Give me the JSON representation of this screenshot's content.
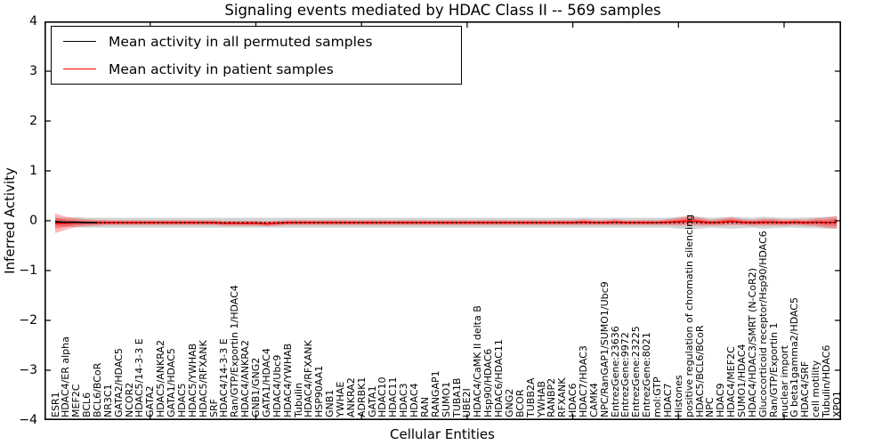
{
  "title": "Signaling events mediated by HDAC Class II -- 569 samples",
  "axes": {
    "ylabel": "Inferred Activity",
    "xlabel": "Cellular Entities",
    "yticks": [
      "4",
      "3",
      "2",
      "1",
      "0",
      "−1",
      "−2",
      "−3",
      "−4"
    ],
    "ytick_values": [
      4,
      3,
      2,
      1,
      0,
      -1,
      -2,
      -3,
      -4
    ]
  },
  "legend": {
    "items": [
      {
        "label": "Mean activity in all permuted samples",
        "color": "#000000"
      },
      {
        "label": "Mean activity in patient samples",
        "color": "#ff0000"
      }
    ]
  },
  "chart_data": {
    "type": "line",
    "title": "Signaling events mediated by HDAC Class II -- 569 samples",
    "xlabel": "Cellular Entities",
    "ylabel": "Inferred Activity",
    "ylim": [
      -4,
      4
    ],
    "grid": false,
    "legend_position": "upper left",
    "categories": [
      "ESR1",
      "HDAC4/ER alpha",
      "MEF2C",
      "BCL6",
      "BCL6/BCoR",
      "NR3C1",
      "GATA2/HDAC5",
      "NCOR2",
      "HDAC5/14-3-3 E",
      "GATA2",
      "HDAC5/ANKRA2",
      "GATA1/HDAC5",
      "HDAC5",
      "HDAC5/YWHAB",
      "HDAC5/RFXANK",
      "SRF",
      "HDAC4/14-3-3 E",
      "Ran/GTP/Exportin 1/HDAC4",
      "HDAC4/ANKRA2",
      "GNB1/GNG2",
      "GATA1/HDAC4",
      "HDAC4/Ubc9",
      "HDAC4/YWHAB",
      "Tubulin",
      "HDAC4/RFXANK",
      "HSP90AA1",
      "GNB1",
      "YWHAE",
      "ANKRA2",
      "ADRBK1",
      "GATA1",
      "HDAC10",
      "HDAC11",
      "HDAC3",
      "HDAC4",
      "RAN",
      "RANGAP1",
      "SUMO1",
      "TUBA1B",
      "UBE2I",
      "HDAC4/CaMK II delta B",
      "Hsp90/HDAC6",
      "HDAC6/HDAC11",
      "GNG2",
      "BCOR",
      "TUBB2A",
      "YWHAB",
      "RANBP2",
      "RFXANK",
      "HDAC6",
      "HDAC7/HDAC3",
      "CAMK4",
      "NPC/RanGAP1/SUMO1/Ubc9",
      "EntrezGene:23636",
      "EntrezGene:9972",
      "EntrezGene:23225",
      "EntrezGene:8021",
      "mol:GTP",
      "HDAC7",
      "Histones",
      "positive regulation of chromatin silencing",
      "HDAC5/BCL6/BCoR",
      "NPC",
      "HDAC9",
      "HDAC4/MEF2C",
      "SUMO1/HDAC4",
      "HDAC4/HDAC3/SMRT (N-CoR2)",
      "Glucocorticoid receptor/Hsp90/HDAC6",
      "Ran/GTP/Exportin 1",
      "nuclear import",
      "G beta1gamma2/HDAC5",
      "HDAC4/SRF",
      "cell motility",
      "Tubulin/HDAC6",
      "XPO1"
    ],
    "series": [
      {
        "name": "Mean activity in all permuted samples",
        "color": "#000000",
        "style": "dotted",
        "values": [
          -0.02,
          -0.03,
          -0.03,
          -0.04,
          -0.04,
          -0.04,
          -0.04,
          -0.04,
          -0.04,
          -0.04,
          -0.04,
          -0.04,
          -0.04,
          -0.04,
          -0.04,
          -0.04,
          -0.04,
          -0.04,
          -0.04,
          -0.04,
          -0.04,
          -0.04,
          -0.04,
          -0.04,
          -0.04,
          -0.04,
          -0.04,
          -0.04,
          -0.04,
          -0.04,
          -0.04,
          -0.04,
          -0.04,
          -0.04,
          -0.04,
          -0.04,
          -0.04,
          -0.04,
          -0.04,
          -0.04,
          -0.04,
          -0.04,
          -0.04,
          -0.04,
          -0.04,
          -0.04,
          -0.04,
          -0.04,
          -0.04,
          -0.04,
          -0.04,
          -0.04,
          -0.04,
          -0.04,
          -0.04,
          -0.04,
          -0.04,
          -0.04,
          -0.04,
          -0.04,
          -0.04,
          -0.04,
          -0.04,
          -0.04,
          -0.04,
          -0.04,
          -0.04,
          -0.04,
          -0.04,
          -0.04,
          -0.04,
          -0.04,
          -0.04,
          -0.04,
          -0.04
        ]
      },
      {
        "name": "Mean activity in patient samples",
        "color": "#ff0000",
        "style": "solid",
        "values": [
          -0.05,
          -0.05,
          -0.04,
          -0.04,
          -0.04,
          -0.04,
          -0.04,
          -0.04,
          -0.04,
          -0.04,
          -0.04,
          -0.04,
          -0.04,
          -0.04,
          -0.04,
          -0.04,
          -0.05,
          -0.05,
          -0.05,
          -0.05,
          -0.06,
          -0.05,
          -0.04,
          -0.04,
          -0.04,
          -0.04,
          -0.04,
          -0.04,
          -0.04,
          -0.04,
          -0.04,
          -0.04,
          -0.04,
          -0.04,
          -0.04,
          -0.04,
          -0.04,
          -0.04,
          -0.04,
          -0.04,
          -0.04,
          -0.04,
          -0.04,
          -0.04,
          -0.04,
          -0.04,
          -0.04,
          -0.04,
          -0.04,
          -0.04,
          -0.03,
          -0.04,
          -0.04,
          -0.03,
          -0.04,
          -0.04,
          -0.04,
          -0.04,
          -0.03,
          -0.02,
          0.0,
          -0.02,
          -0.04,
          -0.03,
          -0.01,
          -0.03,
          -0.04,
          -0.03,
          -0.03,
          -0.04,
          -0.03,
          -0.04,
          -0.03,
          -0.04,
          -0.03
        ]
      }
    ],
    "bands": [
      {
        "series": "Mean activity in all permuted samples",
        "color": "rgba(100,100,100,0.28)",
        "halfwidth": [
          0.08,
          0.09,
          0.1,
          0.1,
          0.1,
          0.1,
          0.1,
          0.1,
          0.1,
          0.1,
          0.1,
          0.1,
          0.1,
          0.1,
          0.1,
          0.1,
          0.1,
          0.1,
          0.1,
          0.1,
          0.1,
          0.1,
          0.1,
          0.1,
          0.1,
          0.1,
          0.1,
          0.1,
          0.1,
          0.1,
          0.1,
          0.1,
          0.1,
          0.1,
          0.1,
          0.1,
          0.1,
          0.1,
          0.1,
          0.1,
          0.1,
          0.1,
          0.1,
          0.1,
          0.1,
          0.1,
          0.1,
          0.1,
          0.1,
          0.1,
          0.1,
          0.1,
          0.1,
          0.1,
          0.1,
          0.1,
          0.1,
          0.1,
          0.1,
          0.12,
          0.13,
          0.12,
          0.1,
          0.11,
          0.12,
          0.11,
          0.1,
          0.12,
          0.11,
          0.1,
          0.1,
          0.11,
          0.11,
          0.12,
          0.12
        ]
      },
      {
        "series": "Mean activity in patient samples",
        "color": "rgba(255,0,0,0.28)",
        "halfwidth": [
          0.2,
          0.13,
          0.09,
          0.07,
          0.06,
          0.05,
          0.05,
          0.05,
          0.05,
          0.05,
          0.05,
          0.05,
          0.05,
          0.05,
          0.05,
          0.05,
          0.05,
          0.05,
          0.05,
          0.05,
          0.05,
          0.05,
          0.05,
          0.05,
          0.05,
          0.05,
          0.05,
          0.05,
          0.05,
          0.05,
          0.05,
          0.05,
          0.05,
          0.05,
          0.05,
          0.05,
          0.05,
          0.05,
          0.05,
          0.05,
          0.05,
          0.05,
          0.05,
          0.05,
          0.05,
          0.05,
          0.05,
          0.05,
          0.05,
          0.05,
          0.06,
          0.05,
          0.05,
          0.06,
          0.05,
          0.05,
          0.05,
          0.05,
          0.06,
          0.08,
          0.09,
          0.08,
          0.06,
          0.07,
          0.08,
          0.06,
          0.06,
          0.07,
          0.07,
          0.06,
          0.06,
          0.06,
          0.08,
          0.1,
          0.13
        ]
      }
    ]
  }
}
